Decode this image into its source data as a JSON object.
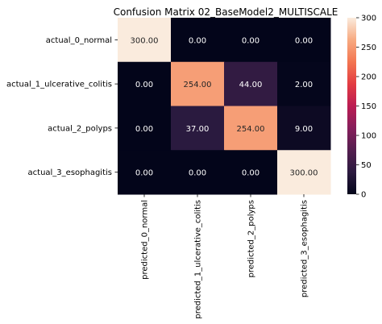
{
  "chart_data": {
    "type": "heatmap",
    "title": "Confusion Matrix 02_BaseModel2_MULTISCALE",
    "rows": [
      "actual_0_normal",
      "actual_1_ulcerative_colitis",
      "actual_2_polyps",
      "actual_3_esophagitis"
    ],
    "columns": [
      "predicted_0_normal",
      "predicted_1_ulcerative_colitis",
      "predicted_2_polyps",
      "predicted_3_esophagitis"
    ],
    "values": [
      [
        300,
        0,
        0,
        0
      ],
      [
        0,
        254,
        44,
        2
      ],
      [
        0,
        37,
        254,
        9
      ],
      [
        0,
        0,
        0,
        300
      ]
    ],
    "cell_labels": [
      [
        "300.00",
        "0.00",
        "0.00",
        "0.00"
      ],
      [
        "0.00",
        "254.00",
        "44.00",
        "2.00"
      ],
      [
        "0.00",
        "37.00",
        "254.00",
        "9.00"
      ],
      [
        "0.00",
        "0.00",
        "0.00",
        "300.00"
      ]
    ],
    "colorbar": {
      "min": 0,
      "max": 300,
      "ticks": [
        "0",
        "50",
        "100",
        "150",
        "200",
        "250",
        "300"
      ],
      "colormap": "rocket"
    },
    "xlabel": "",
    "ylabel": ""
  }
}
